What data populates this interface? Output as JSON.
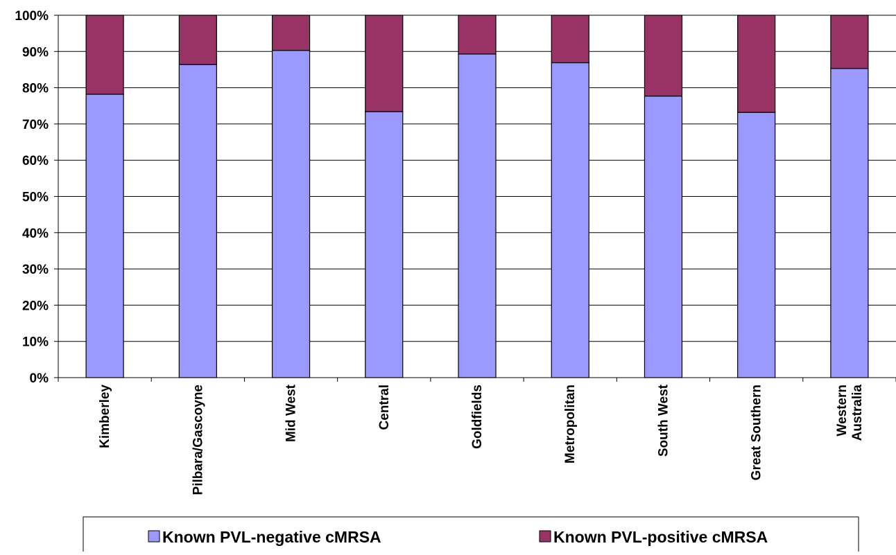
{
  "chart_data": {
    "type": "bar",
    "stacked": true,
    "normalized_percent": true,
    "categories": [
      [
        "Kimberley"
      ],
      [
        "Pilbara/Gascoyne"
      ],
      [
        "Mid West"
      ],
      [
        "Central"
      ],
      [
        "Goldfields"
      ],
      [
        "Metropolitan"
      ],
      [
        "South West"
      ],
      [
        "Great Southern"
      ],
      [
        "Western",
        "Australia"
      ]
    ],
    "series": [
      {
        "name": "Known PVL-negative cMRSA",
        "color": "#9999ff",
        "values": [
          78.2,
          86.4,
          90.3,
          73.4,
          89.3,
          86.9,
          77.7,
          73.2,
          85.3
        ]
      },
      {
        "name": "Known PVL-positive cMRSA",
        "color": "#993366",
        "values": [
          21.8,
          13.6,
          9.7,
          26.6,
          10.7,
          13.1,
          22.3,
          26.8,
          14.7
        ]
      }
    ],
    "y_ticks": [
      "0%",
      "10%",
      "20%",
      "30%",
      "40%",
      "50%",
      "60%",
      "70%",
      "80%",
      "90%",
      "100%"
    ],
    "ylim": [
      0,
      100
    ],
    "grid": true,
    "legend_position": "bottom"
  }
}
